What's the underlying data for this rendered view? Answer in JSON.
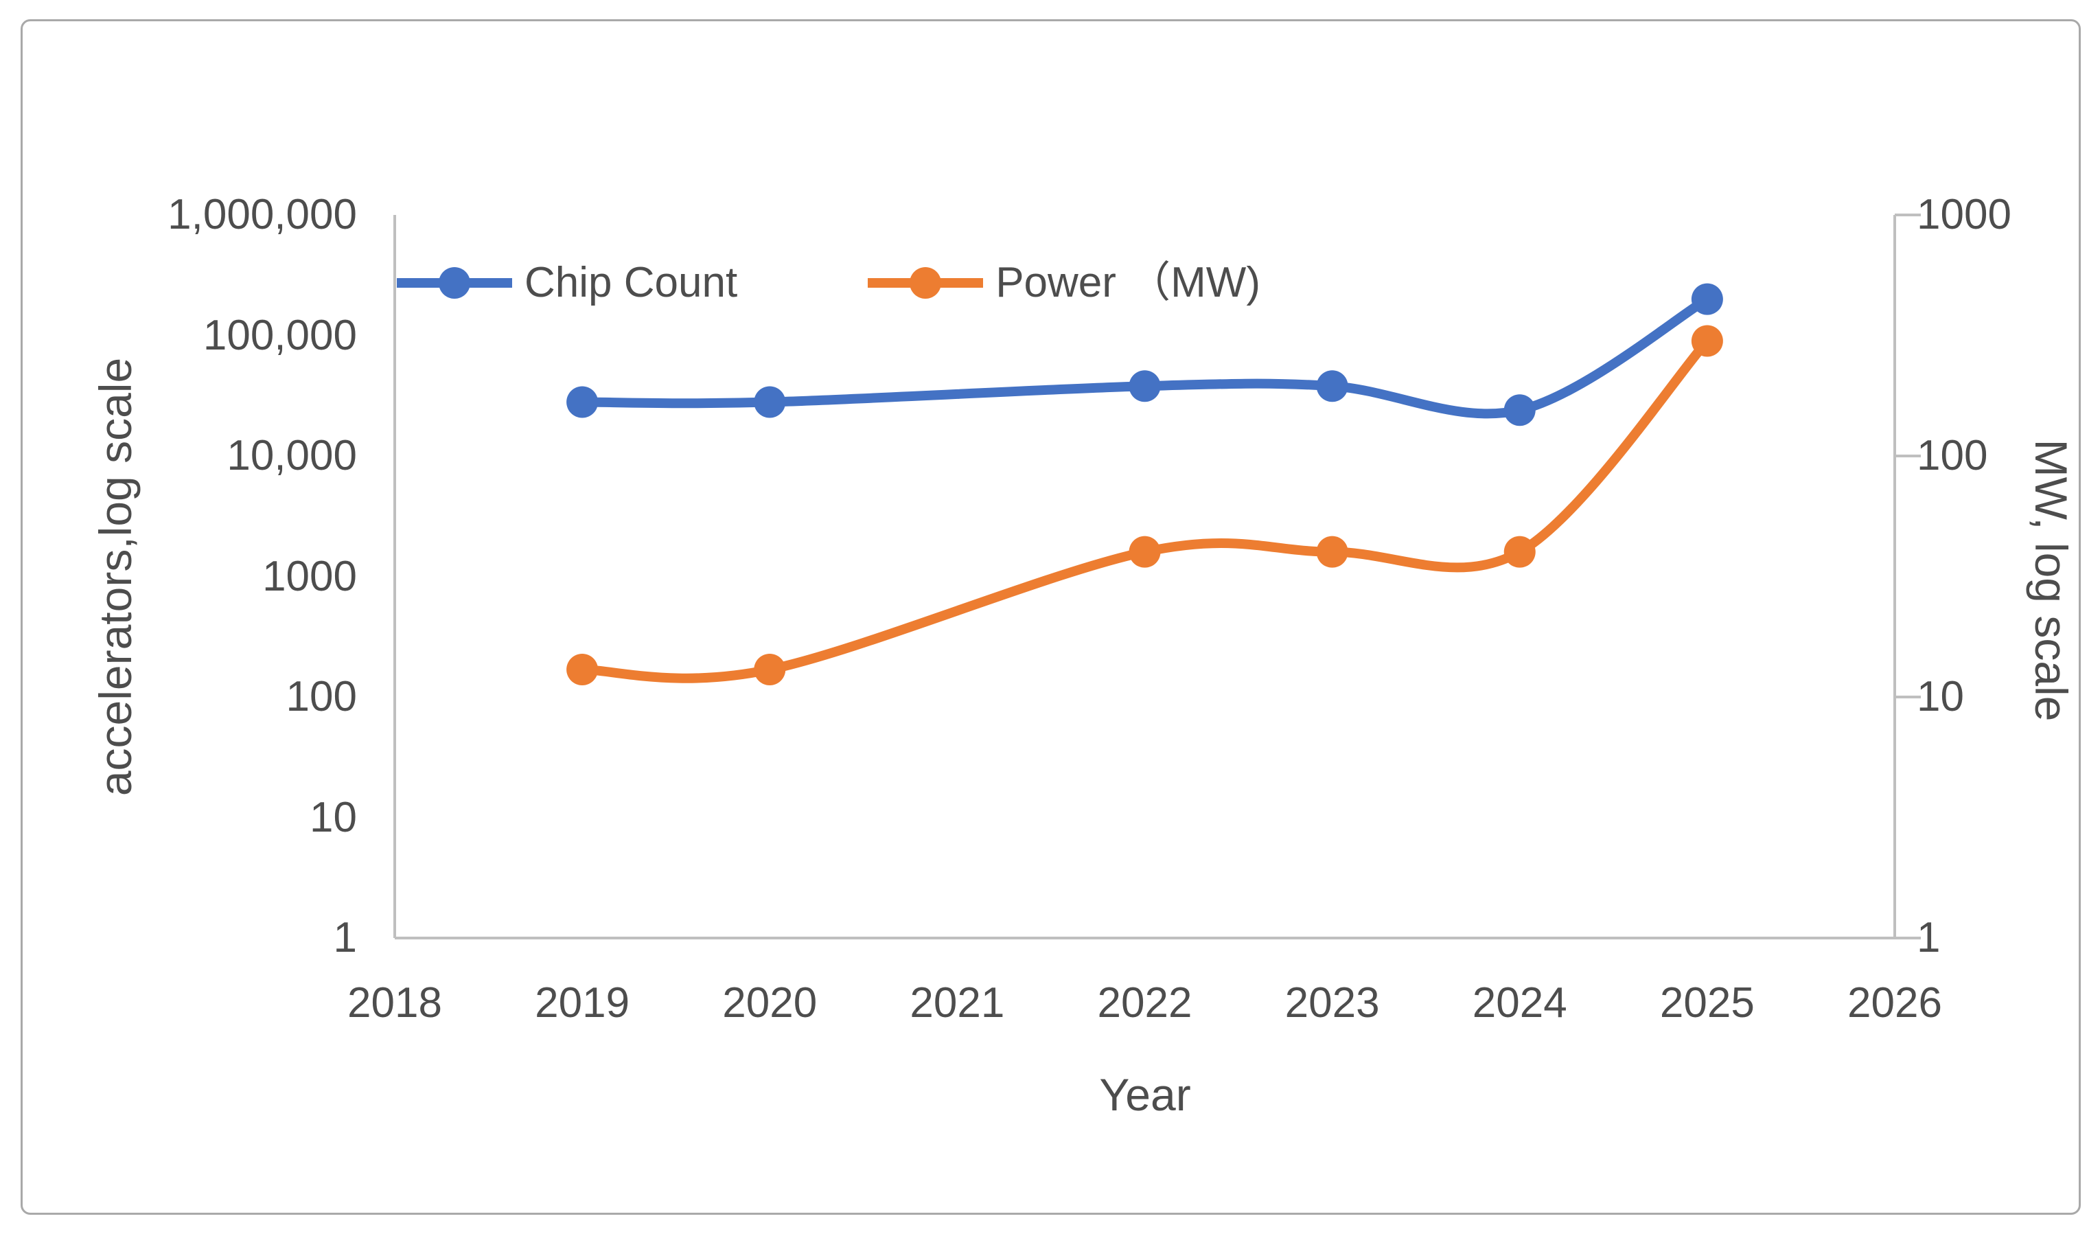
{
  "chart_data": {
    "type": "line",
    "smoothed": true,
    "title": "",
    "x": [
      2019,
      2020,
      2022,
      2023,
      2024,
      2025
    ],
    "series": [
      {
        "name": "Chip Count",
        "axis": "left",
        "color": "#4472C4",
        "values": [
          28000,
          28000,
          38000,
          38000,
          24000,
          200000
        ]
      },
      {
        "name": "Power （MW)",
        "axis": "right",
        "color": "#ED7D31",
        "values": [
          13,
          13,
          40,
          40,
          40,
          300
        ]
      }
    ],
    "x_axis": {
      "title": "Year",
      "range": [
        2018,
        2026
      ],
      "ticks": [
        "2018",
        "2019",
        "2020",
        "2021",
        "2022",
        "2023",
        "2024",
        "2025",
        "2026"
      ]
    },
    "left_axis": {
      "title": "accelerators,log scale",
      "scale": "log",
      "range": [
        1,
        1000000
      ],
      "ticks": [
        {
          "label": "1,000,000",
          "value": 1000000
        },
        {
          "label": "100,000",
          "value": 100000
        },
        {
          "label": "10,000",
          "value": 10000
        },
        {
          "label": "1000",
          "value": 1000
        },
        {
          "label": "100",
          "value": 100
        },
        {
          "label": "10",
          "value": 10
        },
        {
          "label": "1",
          "value": 1
        }
      ]
    },
    "right_axis": {
      "title": "MW, log scale",
      "scale": "log",
      "range": [
        1,
        1000
      ],
      "ticks": [
        {
          "label": "1000",
          "value": 1000
        },
        {
          "label": "100",
          "value": 100
        },
        {
          "label": "10",
          "value": 10
        },
        {
          "label": "1",
          "value": 1
        }
      ]
    },
    "legend_position": "top-inside",
    "grid": "off",
    "axis_line_color": "#BFBFBF",
    "text_color": "#4d4d4d"
  }
}
